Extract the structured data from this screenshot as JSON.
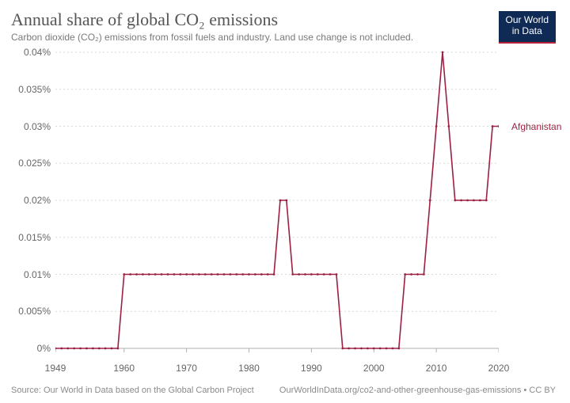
{
  "header": {
    "title": "Annual share of global CO₂ emissions",
    "subtitle": "Carbon dioxide (CO₂) emissions from fossil fuels and industry. Land use change is not included.",
    "logo_line1": "Our World",
    "logo_line2": "in Data",
    "logo_bg": "#0f2a55",
    "logo_accent": "#b5223a"
  },
  "chart": {
    "type": "line",
    "background_color": "#ffffff",
    "grid_color": "#d9d9d9",
    "axis_color": "#b0b0b0",
    "tick_color": "#b0b0b0",
    "label_fontsize": 12,
    "title_fontsize": 22,
    "subtitle_fontsize": 12,
    "x": {
      "min": 1949,
      "max": 2020,
      "ticks": [
        1949,
        1960,
        1970,
        1980,
        1990,
        2000,
        2010,
        2020
      ]
    },
    "y": {
      "min": 0,
      "max": 0.04,
      "ticks": [
        0,
        0.005,
        0.01,
        0.015,
        0.02,
        0.025,
        0.03,
        0.035,
        0.04
      ],
      "tick_labels": [
        "0%",
        "0.005%",
        "0.01%",
        "0.015%",
        "0.02%",
        "0.025%",
        "0.03%",
        "0.035%",
        "0.04%"
      ]
    },
    "series": [
      {
        "name": "Afghanistan",
        "color": "#9b2242",
        "line_width": 1.6,
        "marker_radius": 1.4,
        "label_arrow": true,
        "points": [
          [
            1949,
            0.0
          ],
          [
            1950,
            0.0
          ],
          [
            1951,
            0.0
          ],
          [
            1952,
            0.0
          ],
          [
            1953,
            0.0
          ],
          [
            1954,
            0.0
          ],
          [
            1955,
            0.0
          ],
          [
            1956,
            0.0
          ],
          [
            1957,
            0.0
          ],
          [
            1958,
            0.0
          ],
          [
            1959,
            0.0
          ],
          [
            1960,
            0.01
          ],
          [
            1961,
            0.01
          ],
          [
            1962,
            0.01
          ],
          [
            1963,
            0.01
          ],
          [
            1964,
            0.01
          ],
          [
            1965,
            0.01
          ],
          [
            1966,
            0.01
          ],
          [
            1967,
            0.01
          ],
          [
            1968,
            0.01
          ],
          [
            1969,
            0.01
          ],
          [
            1970,
            0.01
          ],
          [
            1971,
            0.01
          ],
          [
            1972,
            0.01
          ],
          [
            1973,
            0.01
          ],
          [
            1974,
            0.01
          ],
          [
            1975,
            0.01
          ],
          [
            1976,
            0.01
          ],
          [
            1977,
            0.01
          ],
          [
            1978,
            0.01
          ],
          [
            1979,
            0.01
          ],
          [
            1980,
            0.01
          ],
          [
            1981,
            0.01
          ],
          [
            1982,
            0.01
          ],
          [
            1983,
            0.01
          ],
          [
            1984,
            0.01
          ],
          [
            1985,
            0.02
          ],
          [
            1986,
            0.02
          ],
          [
            1987,
            0.01
          ],
          [
            1988,
            0.01
          ],
          [
            1989,
            0.01
          ],
          [
            1990,
            0.01
          ],
          [
            1991,
            0.01
          ],
          [
            1992,
            0.01
          ],
          [
            1993,
            0.01
          ],
          [
            1994,
            0.01
          ],
          [
            1995,
            0.0
          ],
          [
            1996,
            0.0
          ],
          [
            1997,
            0.0
          ],
          [
            1998,
            0.0
          ],
          [
            1999,
            0.0
          ],
          [
            2000,
            0.0
          ],
          [
            2001,
            0.0
          ],
          [
            2002,
            0.0
          ],
          [
            2003,
            0.0
          ],
          [
            2004,
            0.0
          ],
          [
            2005,
            0.01
          ],
          [
            2006,
            0.01
          ],
          [
            2007,
            0.01
          ],
          [
            2008,
            0.01
          ],
          [
            2009,
            0.02
          ],
          [
            2010,
            0.03
          ],
          [
            2011,
            0.04
          ],
          [
            2012,
            0.03
          ],
          [
            2013,
            0.02
          ],
          [
            2014,
            0.02
          ],
          [
            2015,
            0.02
          ],
          [
            2016,
            0.02
          ],
          [
            2017,
            0.02
          ],
          [
            2018,
            0.02
          ],
          [
            2019,
            0.03
          ],
          [
            2020,
            0.03
          ]
        ]
      }
    ]
  },
  "footer": {
    "source": "Source: Our World in Data based on the Global Carbon Project",
    "link": "OurWorldInData.org/co2-and-other-greenhouse-gas-emissions • CC BY"
  }
}
